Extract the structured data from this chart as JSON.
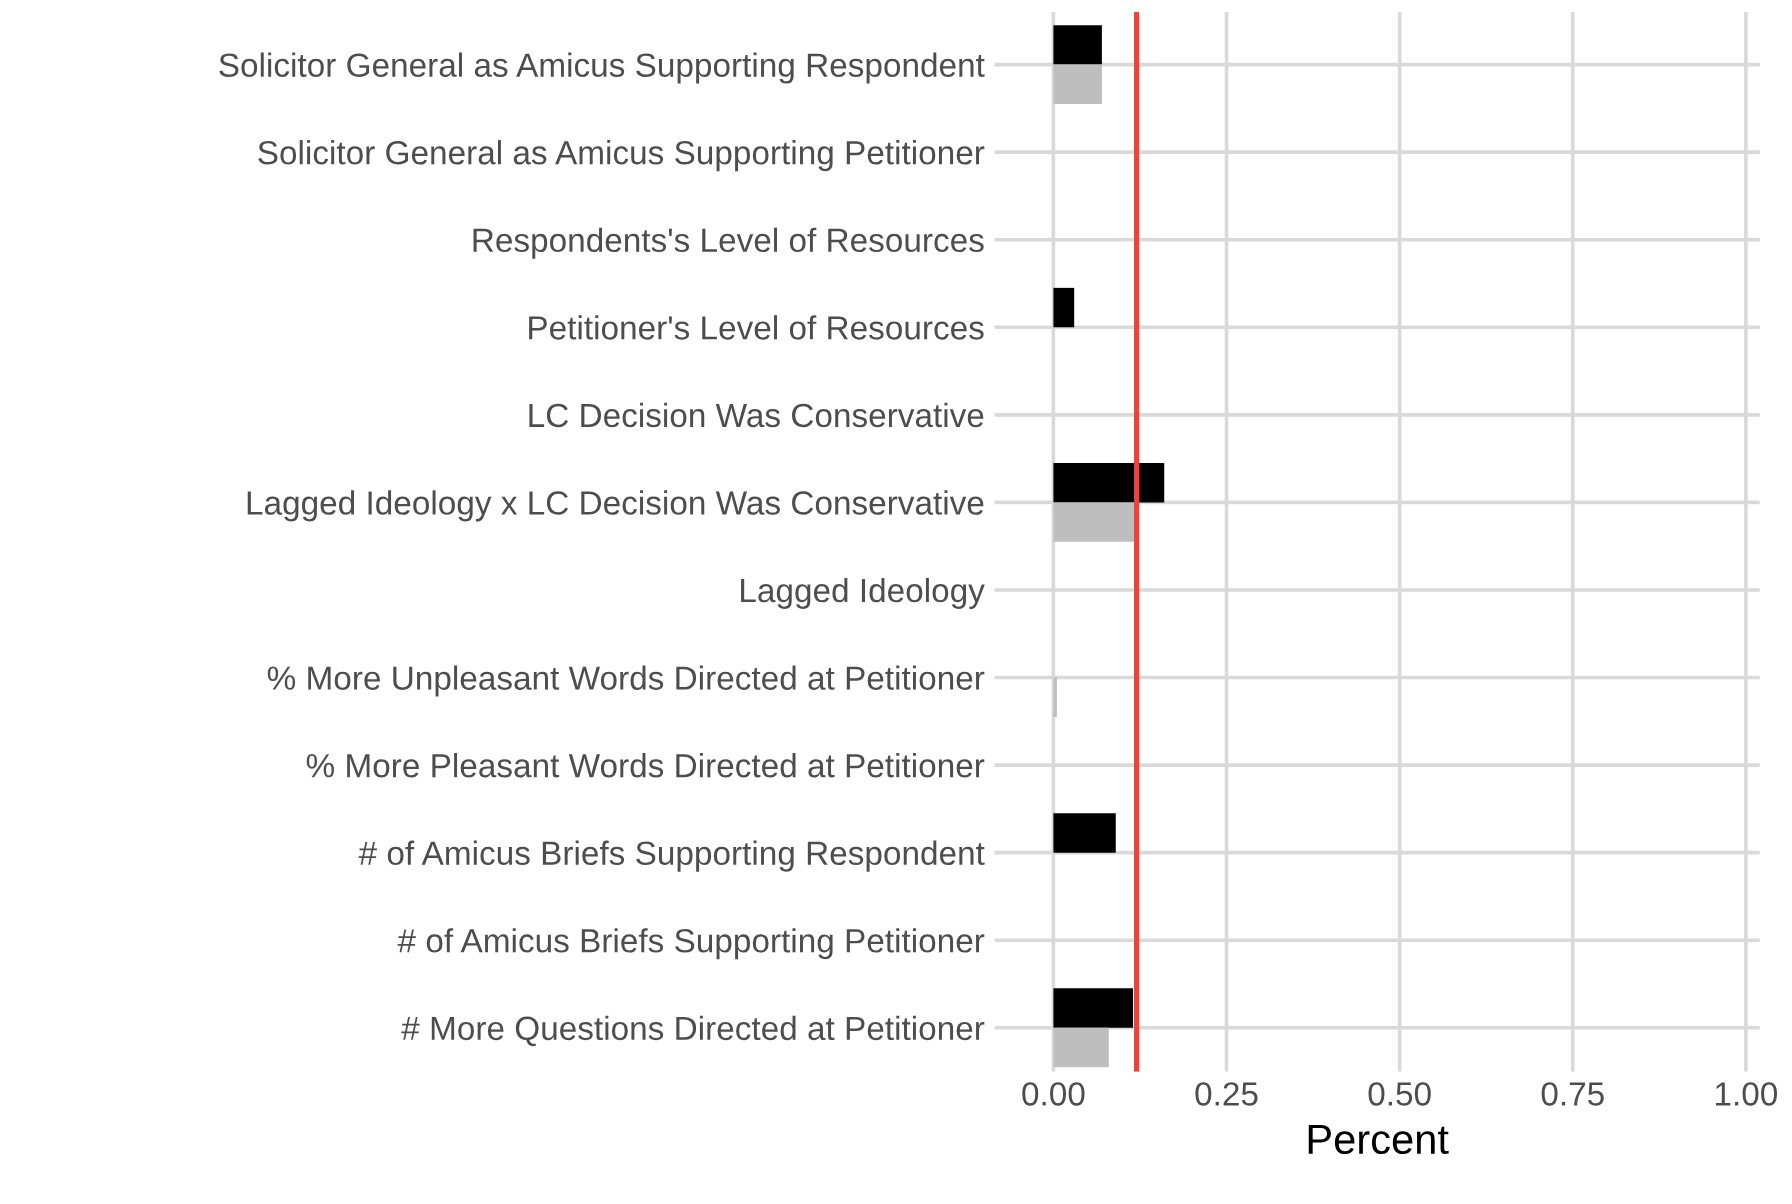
{
  "chart_data": {
    "type": "bar",
    "orientation": "horizontal",
    "xlabel": "Percent",
    "categories": [
      "Solicitor General as Amicus Supporting Respondent",
      "Solicitor General as Amicus Supporting Petitioner",
      "Respondents's Level of Resources",
      "Petitioner's Level of Resources",
      "LC Decision Was Conservative",
      "Lagged Ideology x LC Decision Was Conservative",
      "Lagged Ideology",
      "% More Unpleasant Words Directed at Petitioner",
      "% More Pleasant Words Directed at Petitioner",
      "# of Amicus Briefs Supporting Respondent",
      "# of Amicus Briefs Supporting Petitioner",
      "# More Questions Directed at Petitioner"
    ],
    "series": [
      {
        "color": "#000000",
        "values": [
          0.07,
          0,
          0,
          0.03,
          0,
          0.16,
          0,
          0,
          0,
          0.09,
          0,
          0.115
        ]
      },
      {
        "color": "#bebebe",
        "values": [
          0.07,
          0,
          0,
          0,
          0,
          0.12,
          0,
          0.005,
          0,
          0,
          0,
          0.08
        ]
      }
    ],
    "xlim": [
      -0.085,
      1.02
    ],
    "xticks": [
      {
        "value": 0,
        "label": "0.00"
      },
      {
        "value": 0.25,
        "label": "0.25"
      },
      {
        "value": 0.5,
        "label": "0.50"
      },
      {
        "value": 0.75,
        "label": "0.75"
      },
      {
        "value": 1,
        "label": "1.00"
      }
    ],
    "ref_lines": [
      {
        "axis": "x",
        "value": 0.12,
        "color": "#e8453c"
      }
    ],
    "grid": true
  }
}
